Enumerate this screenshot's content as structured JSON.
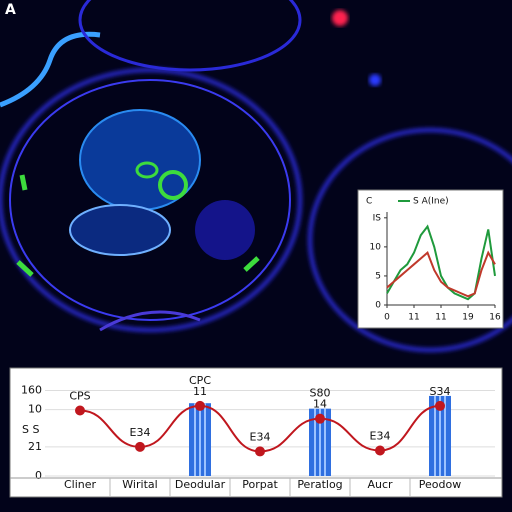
{
  "panel_label": "A",
  "chart_data": [
    {
      "type": "line",
      "title": "C",
      "xticks": [
        {
          "value": 0,
          "label": "0"
        },
        {
          "value": 4,
          "label": "11"
        },
        {
          "value": 8,
          "label": "11"
        },
        {
          "value": 12,
          "label": "19"
        },
        16
      ],
      "xlim": [
        0,
        16
      ],
      "ylim": [
        0,
        16
      ],
      "yticks": [
        {
          "value": 15,
          "label": "IS"
        },
        10,
        5,
        0
      ],
      "x": [
        0,
        1,
        2,
        3,
        4,
        5,
        6,
        7,
        8,
        9,
        10,
        11,
        12,
        13,
        14,
        15,
        16
      ],
      "series": [
        {
          "name": "S A(Ine)",
          "color": "#1f9a3c",
          "values": [
            2,
            4,
            6,
            7,
            9,
            12,
            13.5,
            10,
            5,
            3,
            2,
            1.5,
            1,
            2,
            8,
            13,
            5
          ]
        },
        {
          "color": "#c0392b",
          "values": [
            3,
            4,
            5,
            6,
            7,
            8,
            9,
            6,
            4,
            3,
            2.5,
            2,
            1.5,
            2,
            6,
            9,
            7
          ]
        }
      ]
    },
    {
      "type": "bar",
      "y_label": "S S",
      "categories": [
        "Cliner",
        "Wirital",
        "Deodular",
        "Porpat",
        "Peratlog",
        "Aucr",
        "Peodow"
      ],
      "ylim": [
        0,
        100
      ],
      "yticks": [
        {
          "value": 94,
          "label": "160"
        },
        {
          "value": 73,
          "label": "10"
        },
        {
          "value": 32,
          "label": "21"
        },
        0
      ],
      "annotations": [
        [
          "CPS"
        ],
        [
          "E34"
        ],
        [
          "CPC",
          "11"
        ],
        [
          "E34"
        ],
        [
          "S80",
          "14"
        ],
        [
          "E34"
        ],
        [
          "S34"
        ]
      ],
      "series": [
        {
          "type": "bar",
          "color": "#2f6fe0",
          "values": [
            null,
            null,
            80,
            null,
            74,
            null,
            88
          ]
        },
        {
          "type": "line",
          "color": "#c0171e",
          "values": [
            72,
            32,
            77,
            27,
            63,
            28,
            77
          ]
        }
      ]
    }
  ]
}
